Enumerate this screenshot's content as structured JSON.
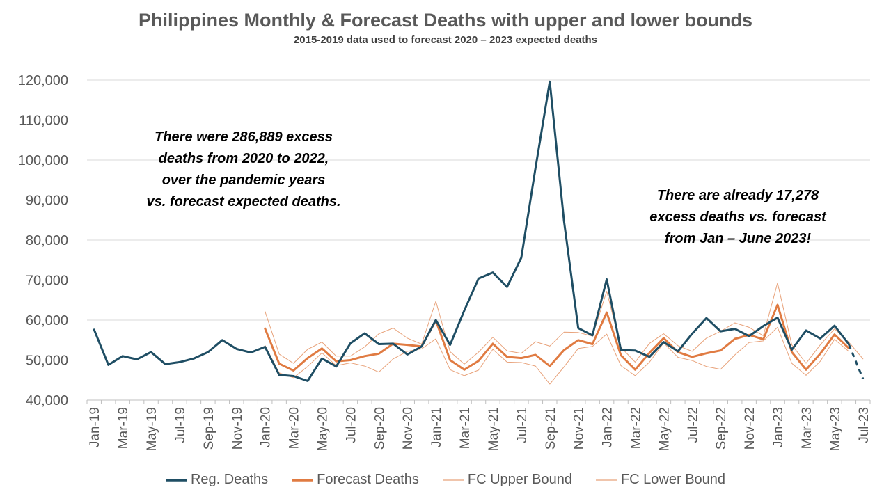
{
  "chart_data": {
    "type": "line",
    "title": "Philippines Monthly & Forecast Deaths with upper and lower bounds",
    "subtitle": "2015-2019 data used to forecast 2020 – 2023 expected deaths",
    "xlabel": "",
    "ylabel": "",
    "ylim": [
      40000,
      120000
    ],
    "yticks": [
      40000,
      50000,
      60000,
      70000,
      80000,
      90000,
      100000,
      110000,
      120000
    ],
    "ytick_labels": [
      "40,000",
      "50,000",
      "60,000",
      "70,000",
      "80,000",
      "90,000",
      "100,000",
      "110,000",
      "120,000"
    ],
    "grid": true,
    "legend_position": "bottom",
    "categories": [
      "Jan-19",
      "Feb-19",
      "Mar-19",
      "Apr-19",
      "May-19",
      "Jun-19",
      "Jul-19",
      "Aug-19",
      "Sep-19",
      "Oct-19",
      "Nov-19",
      "Dec-19",
      "Jan-20",
      "Feb-20",
      "Mar-20",
      "Apr-20",
      "May-20",
      "Jun-20",
      "Jul-20",
      "Aug-20",
      "Sep-20",
      "Oct-20",
      "Nov-20",
      "Dec-20",
      "Jan-21",
      "Feb-21",
      "Mar-21",
      "Apr-21",
      "May-21",
      "Jun-21",
      "Jul-21",
      "Aug-21",
      "Sep-21",
      "Oct-21",
      "Nov-21",
      "Dec-21",
      "Jan-22",
      "Feb-22",
      "Mar-22",
      "Apr-22",
      "May-22",
      "Jun-22",
      "Jul-22",
      "Aug-22",
      "Sep-22",
      "Oct-22",
      "Nov-22",
      "Dec-22",
      "Jan-23",
      "Feb-23",
      "Mar-23",
      "Apr-23",
      "May-23",
      "Jun-23",
      "Jul-23"
    ],
    "tick_labels": [
      "Jan-19",
      "Mar-19",
      "May-19",
      "Jul-19",
      "Sep-19",
      "Nov-19",
      "Jan-20",
      "Mar-20",
      "May-20",
      "Jul-20",
      "Sep-20",
      "Nov-20",
      "Jan-21",
      "Mar-21",
      "May-21",
      "Jul-21",
      "Sep-21",
      "Nov-21",
      "Jan-22",
      "Mar-22",
      "May-22",
      "Jul-22",
      "Sep-22",
      "Nov-22",
      "Jan-23",
      "Mar-23",
      "May-23",
      "Jul-23"
    ],
    "series": [
      {
        "name": "Reg. Deaths",
        "color": "#1f4e64",
        "values": [
          57600,
          48800,
          51000,
          50200,
          52000,
          49000,
          49500,
          50400,
          52000,
          55000,
          52800,
          51900,
          53300,
          46300,
          46000,
          44800,
          50400,
          48400,
          54200,
          56700,
          54000,
          54100,
          51400,
          53400,
          60000,
          53800,
          62400,
          70400,
          71900,
          68300,
          75600,
          98000,
          119600,
          84800,
          58000,
          56200,
          70200,
          52500,
          52400,
          50800,
          54500,
          52200,
          56600,
          60500,
          57200,
          57800,
          56000,
          58500,
          60600,
          52600,
          57400,
          55400,
          58600,
          54000,
          45300
        ],
        "dashed_from_index": 53
      },
      {
        "name": "Forecast Deaths",
        "color": "#e07b42",
        "values": [
          null,
          null,
          null,
          null,
          null,
          null,
          null,
          null,
          null,
          null,
          null,
          null,
          57900,
          49100,
          47400,
          50500,
          52900,
          49700,
          50000,
          51000,
          51600,
          54100,
          53800,
          53400,
          59900,
          50000,
          47600,
          49800,
          54100,
          50800,
          50500,
          51300,
          48500,
          52500,
          55000,
          54000,
          61900,
          51200,
          47600,
          51800,
          55500,
          52000,
          50800,
          51700,
          52400,
          55300,
          56300,
          55200,
          63800,
          52000,
          47600,
          51600,
          56400,
          53000,
          null
        ]
      },
      {
        "name": "FC Upper Bound",
        "color": "#e8a27a",
        "values": [
          null,
          null,
          null,
          null,
          null,
          null,
          null,
          null,
          null,
          null,
          null,
          null,
          62200,
          51500,
          49200,
          52700,
          54500,
          51000,
          51000,
          53300,
          56600,
          58000,
          55500,
          54000,
          64700,
          52100,
          49000,
          52000,
          55700,
          52300,
          51700,
          54600,
          53500,
          57000,
          56900,
          56000,
          67200,
          53200,
          49500,
          54200,
          56600,
          53600,
          52200,
          55500,
          57200,
          59300,
          58200,
          56100,
          69300,
          53800,
          49200,
          53800,
          57800,
          54500,
          50300
        ]
      },
      {
        "name": "FC Lower Bound",
        "color": "#e8a27a",
        "values": [
          null,
          null,
          null,
          null,
          null,
          null,
          null,
          null,
          null,
          null,
          null,
          null,
          53700,
          46800,
          45600,
          48400,
          51800,
          48600,
          49300,
          48500,
          47000,
          50300,
          52200,
          52800,
          55300,
          47600,
          46100,
          47500,
          52700,
          49500,
          49400,
          48500,
          44000,
          48300,
          52900,
          53400,
          56500,
          48600,
          46100,
          49500,
          54300,
          50700,
          49900,
          48400,
          47700,
          51300,
          54400,
          54800,
          58200,
          49200,
          46200,
          49700,
          55200,
          52200,
          null
        ]
      }
    ],
    "annotations": [
      "There were 286,889 excess\ndeaths from 2020 to 2022,\nover the pandemic years\nvs. forecast expected deaths.",
      "There are already 17,278\nexcess deaths vs. forecast\nfrom Jan – June 2023!"
    ]
  }
}
